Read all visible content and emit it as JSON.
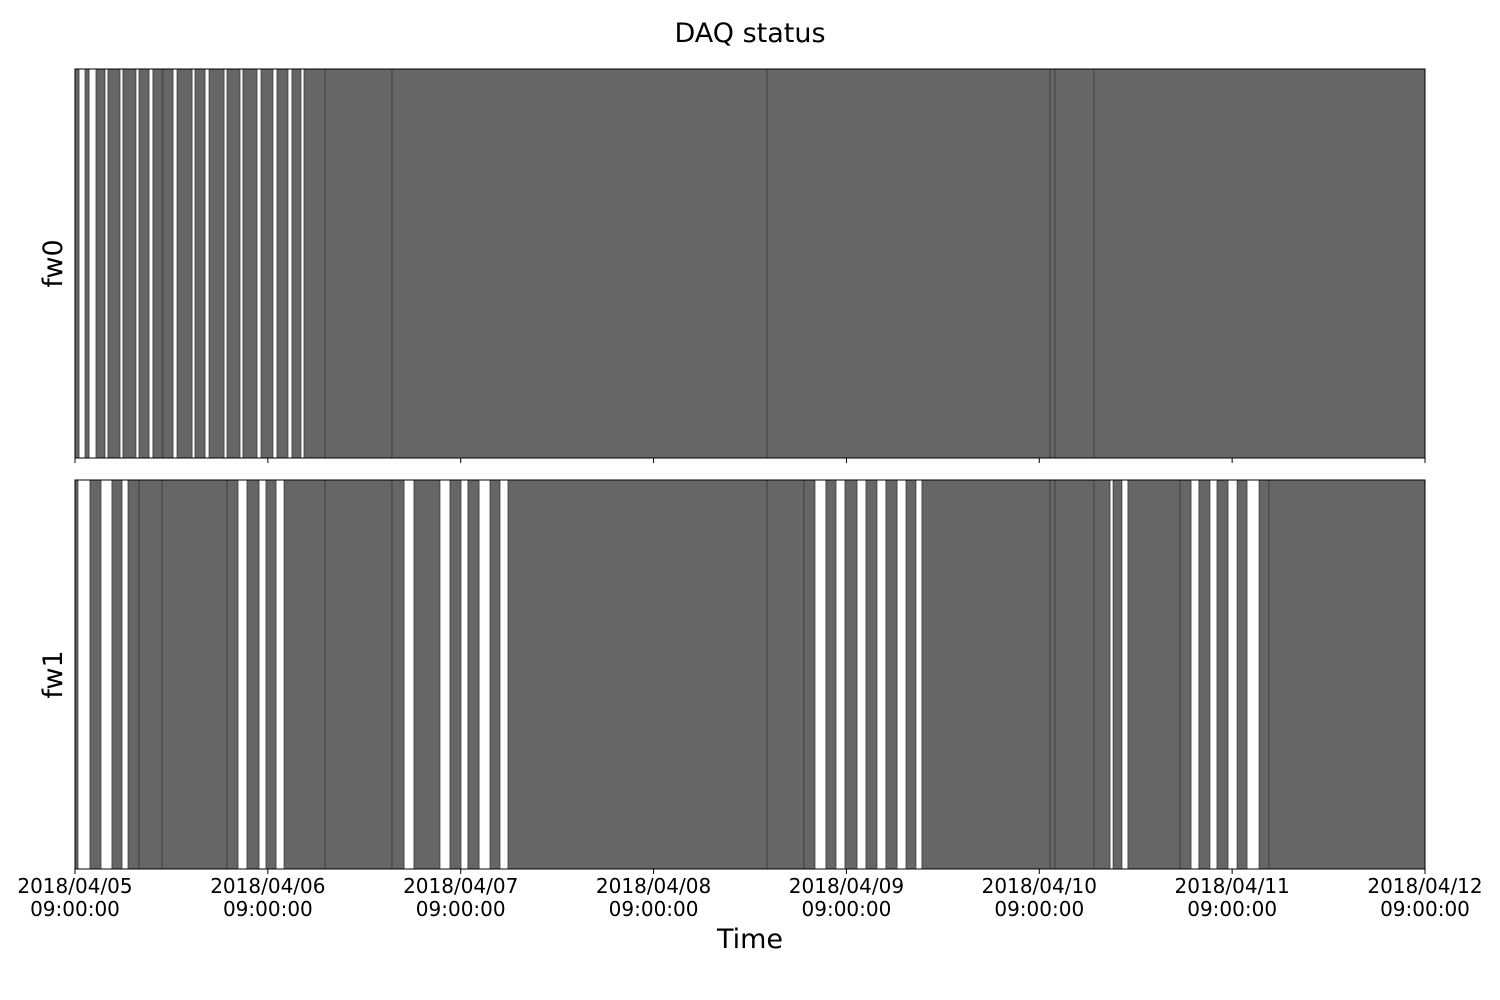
{
  "chart_data": {
    "type": "broken_barh",
    "title": "DAQ status",
    "x_label": "Time",
    "xlim": [
      "2018-04-05 09:00:00",
      "2018-04-12 09:00:00"
    ],
    "xticks": [
      {
        "value": "2018-04-05 09:00:00",
        "label": [
          "2018/04/05",
          "09:00:00"
        ]
      },
      {
        "value": "2018-04-06 09:00:00",
        "label": [
          "2018/04/06",
          "09:00:00"
        ]
      },
      {
        "value": "2018-04-07 09:00:00",
        "label": [
          "2018/04/07",
          "09:00:00"
        ]
      },
      {
        "value": "2018-04-08 09:00:00",
        "label": [
          "2018/04/08",
          "09:00:00"
        ]
      },
      {
        "value": "2018-04-09 09:00:00",
        "label": [
          "2018/04/09",
          "09:00:00"
        ]
      },
      {
        "value": "2018-04-10 09:00:00",
        "label": [
          "2018/04/10",
          "09:00:00"
        ]
      },
      {
        "value": "2018-04-11 09:00:00",
        "label": [
          "2018/04/11",
          "09:00:00"
        ]
      },
      {
        "value": "2018-04-12 09:00:00",
        "label": [
          "2018/04/12",
          "09:00:00"
        ]
      }
    ],
    "series": [
      {
        "name": "fw0",
        "color": "#666666",
        "segments": [
          [
            "2018-04-05 09:00",
            "2018-04-05 09:30"
          ],
          [
            "2018-04-05 10:15",
            "2018-04-05 10:45"
          ],
          [
            "2018-04-05 11:37",
            "2018-04-05 12:44"
          ],
          [
            "2018-04-05 13:06",
            "2018-04-05 14:36"
          ],
          [
            "2018-04-05 14:58",
            "2018-04-05 16:35"
          ],
          [
            "2018-04-05 16:58",
            "2018-04-05 18:13"
          ],
          [
            "2018-04-05 18:42",
            "2018-04-05 19:50"
          ],
          [
            "2018-04-05 19:57",
            "2018-04-05 21:12"
          ],
          [
            "2018-04-05 21:42",
            "2018-04-05 23:34"
          ],
          [
            "2018-04-05 23:56",
            "2018-04-06 01:11"
          ],
          [
            "2018-04-06 01:41",
            "2018-04-06 03:33"
          ],
          [
            "2018-04-06 03:55",
            "2018-04-06 05:32"
          ],
          [
            "2018-04-06 05:54",
            "2018-04-06 07:39"
          ],
          [
            "2018-04-06 08:09",
            "2018-04-06 09:38"
          ],
          [
            "2018-04-06 10:08",
            "2018-04-06 11:30"
          ],
          [
            "2018-04-06 12:00",
            "2018-04-06 13:07"
          ],
          [
            "2018-04-06 13:30",
            "2018-04-06 16:07"
          ],
          [
            "2018-04-06 16:07",
            "2018-04-07 00:27"
          ],
          [
            "2018-04-07 00:27",
            "2018-04-08 23:07"
          ],
          [
            "2018-04-08 23:07",
            "2018-04-10 10:20"
          ],
          [
            "2018-04-10 10:20",
            "2018-04-10 10:57"
          ],
          [
            "2018-04-10 10:57",
            "2018-04-10 15:48"
          ],
          [
            "2018-04-10 15:48",
            "2018-04-12 09:00"
          ]
        ]
      },
      {
        "name": "fw1",
        "color": "#666666",
        "segments": [
          [
            "2018-04-05 09:00",
            "2018-04-05 09:22"
          ],
          [
            "2018-04-05 10:52",
            "2018-04-05 12:14"
          ],
          [
            "2018-04-05 13:36",
            "2018-04-05 14:51"
          ],
          [
            "2018-04-05 15:36",
            "2018-04-05 16:58"
          ],
          [
            "2018-04-05 16:58",
            "2018-04-05 19:50"
          ],
          [
            "2018-04-05 19:50",
            "2018-04-06 03:55"
          ],
          [
            "2018-04-06 03:55",
            "2018-04-06 05:17"
          ],
          [
            "2018-04-06 06:24",
            "2018-04-06 07:54"
          ],
          [
            "2018-04-06 08:46",
            "2018-04-06 10:01"
          ],
          [
            "2018-04-06 11:01",
            "2018-04-06 16:07"
          ],
          [
            "2018-04-06 16:07",
            "2018-04-07 00:27"
          ],
          [
            "2018-04-07 00:27",
            "2018-04-07 01:57"
          ],
          [
            "2018-04-07 03:11",
            "2018-04-07 06:25"
          ],
          [
            "2018-04-07 07:40",
            "2018-04-07 09:02"
          ],
          [
            "2018-04-07 09:54",
            "2018-04-07 11:17"
          ],
          [
            "2018-04-07 12:39",
            "2018-04-07 13:53"
          ],
          [
            "2018-04-07 14:53",
            "2018-04-08 23:07"
          ],
          [
            "2018-04-08 23:07",
            "2018-04-09 03:43"
          ],
          [
            "2018-04-09 03:43",
            "2018-04-09 05:05"
          ],
          [
            "2018-04-09 06:27",
            "2018-04-09 07:42"
          ],
          [
            "2018-04-09 08:49",
            "2018-04-09 10:19"
          ],
          [
            "2018-04-09 11:26",
            "2018-04-09 12:48"
          ],
          [
            "2018-04-09 13:55",
            "2018-04-09 15:18"
          ],
          [
            "2018-04-09 16:25",
            "2018-04-09 17:39"
          ],
          [
            "2018-04-09 18:24",
            "2018-04-10 10:20"
          ],
          [
            "2018-04-10 10:20",
            "2018-04-10 10:57"
          ],
          [
            "2018-04-10 10:57",
            "2018-04-10 15:48"
          ],
          [
            "2018-04-10 15:48",
            "2018-04-10 17:48"
          ],
          [
            "2018-04-10 18:11",
            "2018-04-10 19:17"
          ],
          [
            "2018-04-10 20:02",
            "2018-04-11 02:31"
          ],
          [
            "2018-04-11 02:31",
            "2018-04-11 03:53"
          ],
          [
            "2018-04-11 04:52",
            "2018-04-11 06:14"
          ],
          [
            "2018-04-11 07:07",
            "2018-04-11 08:29"
          ],
          [
            "2018-04-11 09:37",
            "2018-04-11 10:51"
          ],
          [
            "2018-04-11 12:21",
            "2018-04-11 13:35"
          ],
          [
            "2018-04-11 13:35",
            "2018-04-12 09:00"
          ]
        ]
      }
    ]
  }
}
